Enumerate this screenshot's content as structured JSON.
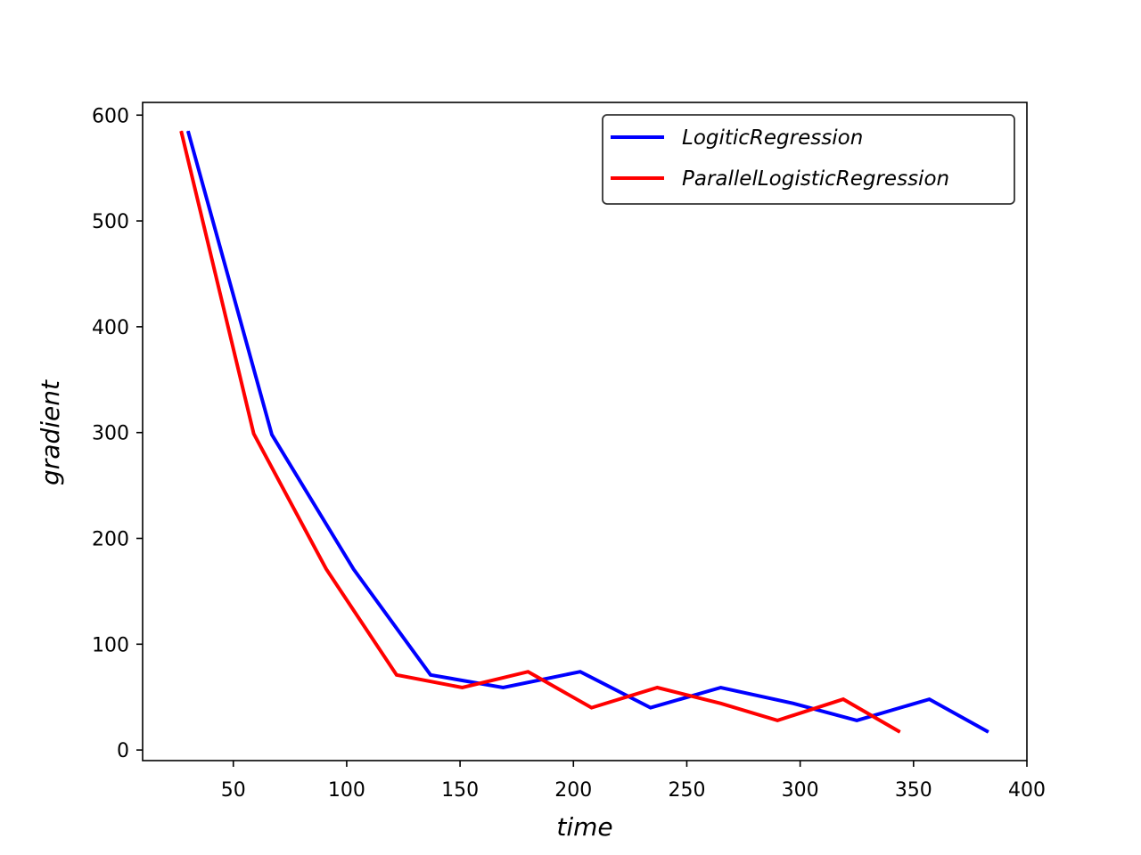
{
  "chart_data": {
    "type": "line",
    "xlabel": "time",
    "ylabel": "gradient",
    "xlim": [
      10,
      400
    ],
    "ylim": [
      -10,
      612
    ],
    "xticks": [
      50,
      100,
      150,
      200,
      250,
      300,
      350,
      400
    ],
    "yticks": [
      0,
      100,
      200,
      300,
      400,
      500,
      600
    ],
    "grid": false,
    "legend_position": "top-right",
    "series": [
      {
        "name": "LogiticRegression",
        "color": "#0000ff",
        "x": [
          30,
          67,
          103,
          137,
          169,
          203,
          234,
          265,
          297,
          325,
          357,
          383
        ],
        "y": [
          585,
          298,
          171,
          71,
          59,
          74,
          40,
          59,
          44,
          28,
          48,
          17
        ]
      },
      {
        "name": "ParallelLogisticRegression",
        "color": "#ff0000",
        "x": [
          27,
          59,
          91,
          122,
          151,
          180,
          208,
          237,
          265,
          290,
          319,
          344
        ],
        "y": [
          585,
          299,
          171,
          71,
          59,
          74,
          40,
          59,
          44,
          28,
          48,
          17
        ]
      }
    ]
  }
}
